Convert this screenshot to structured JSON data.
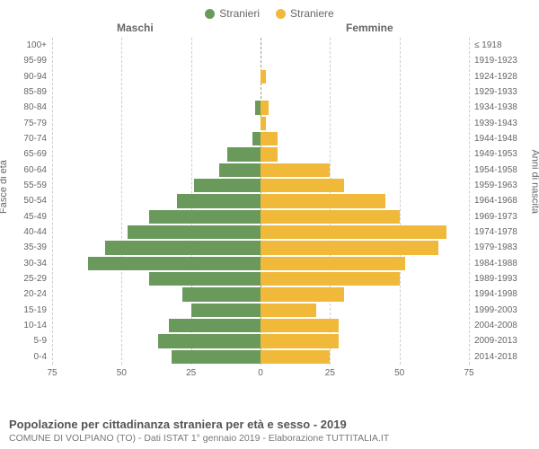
{
  "legend": {
    "male": {
      "label": "Stranieri",
      "color": "#6a9a5b"
    },
    "female": {
      "label": "Straniere",
      "color": "#f0b93a"
    }
  },
  "headers": {
    "male": "Maschi",
    "female": "Femmine"
  },
  "axis": {
    "left_title": "Fasce di età",
    "right_title": "Anni di nascita",
    "x_ticks_left": [
      75,
      50,
      25,
      0
    ],
    "x_ticks_right": [
      25,
      50,
      75
    ],
    "x_max": 75
  },
  "colors": {
    "grid": "#cccccc",
    "center": "#999999",
    "text": "#666666",
    "bg": "#ffffff"
  },
  "rows": [
    {
      "age": "100+",
      "birth": "≤ 1918",
      "m": 0,
      "f": 0
    },
    {
      "age": "95-99",
      "birth": "1919-1923",
      "m": 0,
      "f": 0
    },
    {
      "age": "90-94",
      "birth": "1924-1928",
      "m": 0,
      "f": 2
    },
    {
      "age": "85-89",
      "birth": "1929-1933",
      "m": 0,
      "f": 0
    },
    {
      "age": "80-84",
      "birth": "1934-1938",
      "m": 2,
      "f": 3
    },
    {
      "age": "75-79",
      "birth": "1939-1943",
      "m": 0,
      "f": 2
    },
    {
      "age": "70-74",
      "birth": "1944-1948",
      "m": 3,
      "f": 6
    },
    {
      "age": "65-69",
      "birth": "1949-1953",
      "m": 12,
      "f": 6
    },
    {
      "age": "60-64",
      "birth": "1954-1958",
      "m": 15,
      "f": 25
    },
    {
      "age": "55-59",
      "birth": "1959-1963",
      "m": 24,
      "f": 30
    },
    {
      "age": "50-54",
      "birth": "1964-1968",
      "m": 30,
      "f": 45
    },
    {
      "age": "45-49",
      "birth": "1969-1973",
      "m": 40,
      "f": 50
    },
    {
      "age": "40-44",
      "birth": "1974-1978",
      "m": 48,
      "f": 67
    },
    {
      "age": "35-39",
      "birth": "1979-1983",
      "m": 56,
      "f": 64
    },
    {
      "age": "30-34",
      "birth": "1984-1988",
      "m": 62,
      "f": 52
    },
    {
      "age": "25-29",
      "birth": "1989-1993",
      "m": 40,
      "f": 50
    },
    {
      "age": "20-24",
      "birth": "1994-1998",
      "m": 28,
      "f": 30
    },
    {
      "age": "15-19",
      "birth": "1999-2003",
      "m": 25,
      "f": 20
    },
    {
      "age": "10-14",
      "birth": "2004-2008",
      "m": 33,
      "f": 28
    },
    {
      "age": "5-9",
      "birth": "2009-2013",
      "m": 37,
      "f": 28
    },
    {
      "age": "0-4",
      "birth": "2014-2018",
      "m": 32,
      "f": 25
    }
  ],
  "footer": {
    "title": "Popolazione per cittadinanza straniera per età e sesso - 2019",
    "subtitle": "COMUNE DI VOLPIANO (TO) - Dati ISTAT 1° gennaio 2019 - Elaborazione TUTTITALIA.IT"
  }
}
